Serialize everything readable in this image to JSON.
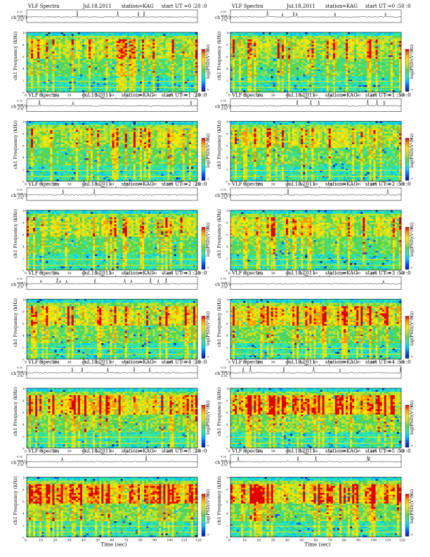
{
  "page": {
    "background": "#ffffff"
  },
  "colormap": [
    "#0a1a8c",
    "#0055ff",
    "#00c8ff",
    "#33e6a8",
    "#55d455",
    "#bfe12a",
    "#ffe600",
    "#ff9a00",
    "#e00000"
  ],
  "labels": {
    "ch_axis": "ch 1(V)",
    "ch_ticks": [
      "0.30",
      "0.00",
      "-0.30"
    ],
    "spec_ylabel": "ch1 Frequency (kHz)",
    "spec_yticks": [
      "0",
      "2",
      "4",
      "6",
      "8",
      "10"
    ],
    "xlabel": "Time (sec)",
    "xticks": [
      "0",
      "10",
      "20",
      "30",
      "40",
      "50",
      "60",
      "70",
      "80",
      "90",
      "100",
      "110",
      "120"
    ],
    "cbar_label": "log(PSD)(V²/Hz)",
    "cbar_ticks": [
      "-5",
      "-7",
      "-9"
    ]
  },
  "chart_data": [
    {
      "type": "heatmap",
      "title": "VLF Spectra",
      "date": "Jul.18.2011",
      "station": "station=KAG",
      "start": "start UT =0 :20 :0",
      "xlabel": "Time (sec)",
      "xlim": [
        0,
        120
      ],
      "ylabel": "ch1 Frequency (kHz)",
      "ylim": [
        0,
        10
      ],
      "intensity": "medium"
    },
    {
      "type": "heatmap",
      "title": "VLF Spectra",
      "date": "Jul.18.2011",
      "station": "station=KAG",
      "start": "start UT =0 :50 :0",
      "xlabel": "Time (sec)",
      "xlim": [
        0,
        120
      ],
      "ylabel": "ch1 Frequency (kHz)",
      "ylim": [
        0,
        10
      ],
      "intensity": "medium"
    },
    {
      "type": "heatmap",
      "title": "VLF Spectra",
      "date": "Jul.18.2011",
      "station": "station=KAG",
      "start": "start UT =1 :20 :0",
      "xlabel": "Time (sec)",
      "xlim": [
        0,
        120
      ],
      "ylabel": "ch1 Frequency (kHz)",
      "ylim": [
        0,
        10
      ],
      "intensity": "medium"
    },
    {
      "type": "heatmap",
      "title": "VLF Spectra",
      "date": "Jul.18.2011",
      "station": "station=KAG",
      "start": "start UT =1 :50 :0",
      "xlabel": "Time (sec)",
      "xlim": [
        0,
        120
      ],
      "ylabel": "ch1 Frequency (kHz)",
      "ylim": [
        0,
        10
      ],
      "intensity": "medium"
    },
    {
      "type": "heatmap",
      "title": "VLF Spectra",
      "date": "Jul.18.2011",
      "station": "station=KAG",
      "start": "start UT =2 :20 :0",
      "xlabel": "Time (sec)",
      "xlim": [
        0,
        120
      ],
      "ylabel": "ch1 Frequency (kHz)",
      "ylim": [
        0,
        10
      ],
      "intensity": "medium"
    },
    {
      "type": "heatmap",
      "title": "VLF Spectra",
      "date": "Jul.18.2011",
      "station": "station=KAG",
      "start": "start UT =2 :50 :0",
      "xlabel": "Time (sec)",
      "xlim": [
        0,
        120
      ],
      "ylabel": "ch1 Frequency (kHz)",
      "ylim": [
        0,
        10
      ],
      "intensity": "medium"
    },
    {
      "type": "heatmap",
      "title": "VLF Spectra",
      "date": "Jul.18.2011",
      "station": "station=KAG",
      "start": "start UT =3 :20 :0",
      "xlabel": "Time (sec)",
      "xlim": [
        0,
        120
      ],
      "ylabel": "ch1 Frequency (kHz)",
      "ylim": [
        0,
        10
      ],
      "intensity": "medium-high"
    },
    {
      "type": "heatmap",
      "title": "VLF Spectra",
      "date": "Jul.18.2011",
      "station": "station=KAG",
      "start": "start UT =3 :50 :0",
      "xlabel": "Time (sec)",
      "xlim": [
        0,
        120
      ],
      "ylabel": "ch1 Frequency (kHz)",
      "ylim": [
        0,
        10
      ],
      "intensity": "high"
    },
    {
      "type": "heatmap",
      "title": "VLF Spectra",
      "date": "Jul.18.2011",
      "station": "station=KAG",
      "start": "start UT =4 :20 :0",
      "xlabel": "Time (sec)",
      "xlim": [
        0,
        120
      ],
      "ylabel": "ch1 Frequency (kHz)",
      "ylim": [
        0,
        10
      ],
      "intensity": "high"
    },
    {
      "type": "heatmap",
      "title": "VLF Spectra",
      "date": "Jul.18.2011",
      "station": "station=KAG",
      "start": "start UT =4 :50 :0",
      "xlabel": "Time (sec)",
      "xlim": [
        0,
        120
      ],
      "ylabel": "ch1 Frequency (kHz)",
      "ylim": [
        0,
        10
      ],
      "intensity": "very-high"
    },
    {
      "type": "heatmap",
      "title": "VLF Spectra",
      "date": "Jul.18.2011",
      "station": "station=KAG",
      "start": "start UT =5 :20 :0",
      "xlabel": "Time (sec)",
      "xlim": [
        0,
        120
      ],
      "ylabel": "ch1 Frequency (kHz)",
      "ylim": [
        0,
        10
      ],
      "intensity": "very-high"
    },
    {
      "type": "heatmap",
      "title": "VLF Spectra",
      "date": "Jul.18.2011",
      "station": "station=KAG",
      "start": "start UT =5 :50 :0",
      "xlabel": "Time (sec)",
      "xlim": [
        0,
        120
      ],
      "ylabel": "ch1 Frequency (kHz)",
      "ylim": [
        0,
        10
      ],
      "intensity": "very-high"
    }
  ]
}
